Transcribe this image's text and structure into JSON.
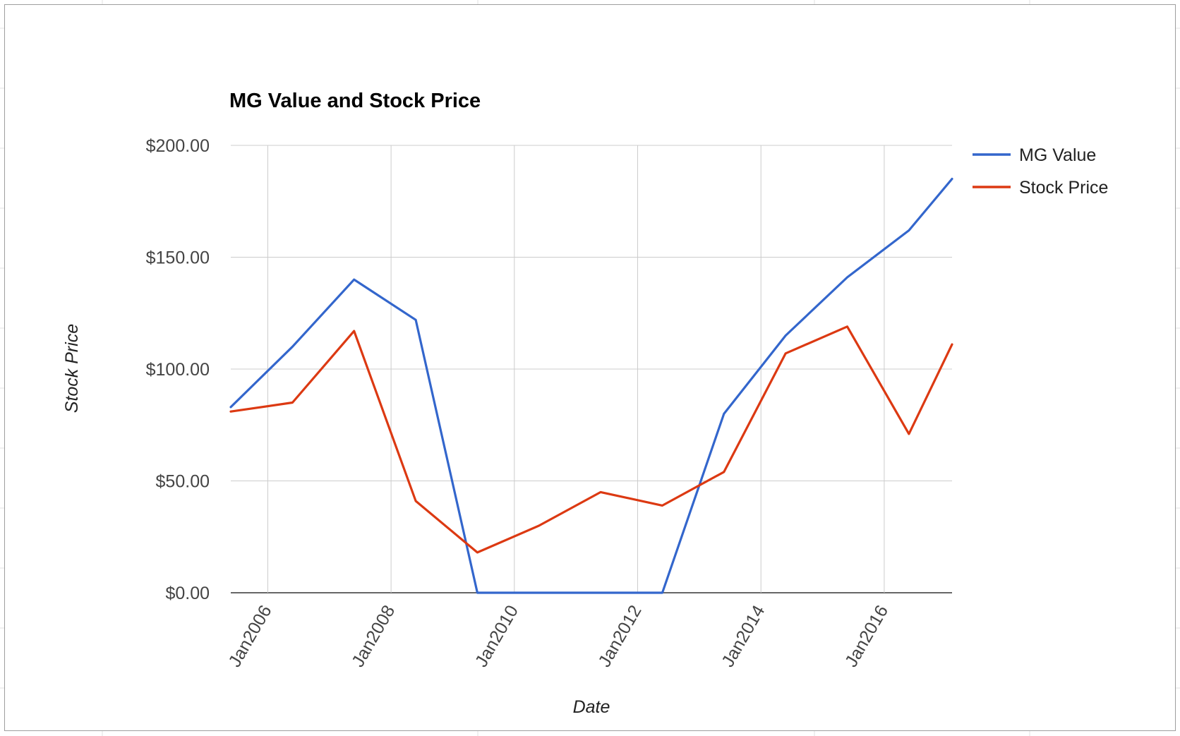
{
  "chart_data": {
    "type": "line",
    "title": "MG Value and Stock Price",
    "xlabel": "Date",
    "ylabel": "Stock Price",
    "x_ticks": [
      "Jan2006",
      "Jan2008",
      "Jan2010",
      "Jan2012",
      "Jan2014",
      "Jan2016"
    ],
    "x_tick_years": [
      2006,
      2008,
      2010,
      2012,
      2014,
      2016
    ],
    "y_ticks": [
      "$0.00",
      "$50.00",
      "$100.00",
      "$150.00",
      "$200.00"
    ],
    "ylim": [
      0,
      200
    ],
    "xlim": [
      2005.4,
      2017.1
    ],
    "grid": true,
    "legend": "right",
    "series": [
      {
        "name": "MG Value",
        "color": "#3366cc",
        "x": [
          2005.4,
          2006.4,
          2007.4,
          2008.4,
          2009.4,
          2010.4,
          2011.4,
          2012.4,
          2013.4,
          2014.4,
          2015.4,
          2016.4,
          2017.1
        ],
        "values": [
          83,
          110,
          140,
          122,
          0,
          0,
          0,
          0,
          80,
          115,
          141,
          162,
          185
        ]
      },
      {
        "name": "Stock Price",
        "color": "#dc3912",
        "x": [
          2005.4,
          2006.4,
          2007.4,
          2008.4,
          2009.4,
          2010.4,
          2011.4,
          2012.4,
          2013.4,
          2014.4,
          2015.4,
          2016.4,
          2017.1
        ],
        "values": [
          81,
          85,
          117,
          41,
          18,
          30,
          45,
          39,
          54,
          107,
          119,
          71,
          111
        ]
      }
    ]
  }
}
